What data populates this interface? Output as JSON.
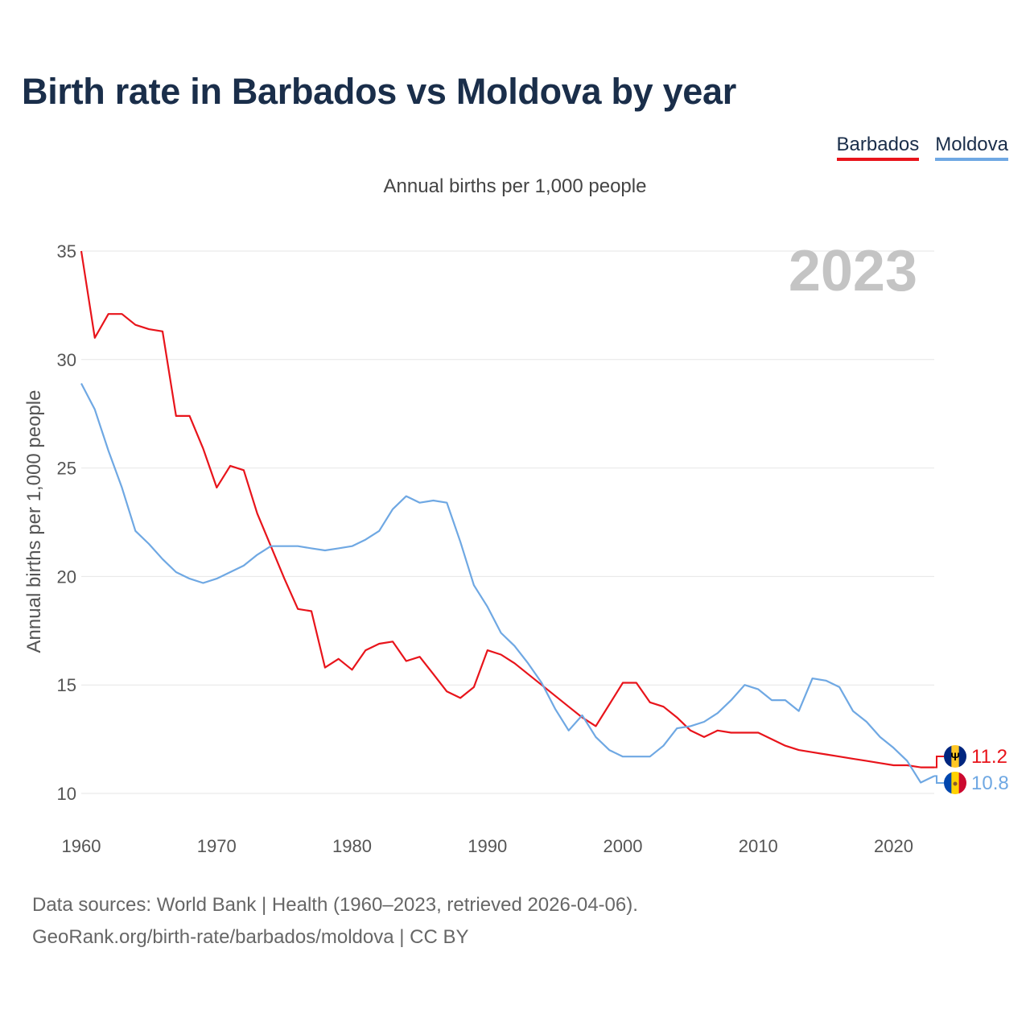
{
  "title": "Birth rate in Barbados vs Moldova by year",
  "subtitle": "Annual births per 1,000 people",
  "colors": {
    "barbados": "#e8141b",
    "moldova": "#6fa8e3",
    "grid": "#e6e6e6",
    "axisText": "#555555",
    "yearStamp": "#c4c4c4"
  },
  "legend": [
    {
      "label": "Barbados",
      "color": "#e8141b"
    },
    {
      "label": "Moldova",
      "color": "#6fa8e3"
    }
  ],
  "footer": {
    "line1": "Data sources: World Bank | Health (1960–2023, retrieved 2026-04-06).",
    "line2": "GeoRank.org/birth-rate/barbados/moldova | CC BY"
  },
  "chart_data": {
    "type": "line",
    "title": "Birth rate in Barbados vs Moldova by year",
    "ylabel": "Annual births per 1,000 people",
    "xlabel": "",
    "year_stamp": "2023",
    "xlim": [
      1960,
      2023
    ],
    "ylim": [
      10,
      35
    ],
    "xticks": [
      1960,
      1970,
      1980,
      1990,
      2000,
      2010,
      2020
    ],
    "yticks": [
      10,
      15,
      20,
      25,
      30,
      35
    ],
    "x": [
      1960,
      1961,
      1962,
      1963,
      1964,
      1965,
      1966,
      1967,
      1968,
      1969,
      1970,
      1971,
      1972,
      1973,
      1974,
      1975,
      1976,
      1977,
      1978,
      1979,
      1980,
      1981,
      1982,
      1983,
      1984,
      1985,
      1986,
      1987,
      1988,
      1989,
      1990,
      1991,
      1992,
      1993,
      1994,
      1995,
      1996,
      1997,
      1998,
      1999,
      2000,
      2001,
      2002,
      2003,
      2004,
      2005,
      2006,
      2007,
      2008,
      2009,
      2010,
      2011,
      2012,
      2013,
      2014,
      2015,
      2016,
      2017,
      2018,
      2019,
      2020,
      2021,
      2022,
      2023
    ],
    "series": [
      {
        "name": "Barbados",
        "end_label": "11.2",
        "values": [
          35.0,
          31.0,
          32.1,
          32.1,
          31.6,
          31.4,
          31.3,
          27.4,
          27.4,
          25.9,
          24.1,
          25.1,
          24.9,
          22.9,
          21.4,
          19.9,
          18.5,
          18.4,
          15.8,
          16.2,
          15.7,
          16.6,
          16.9,
          17.0,
          16.1,
          16.3,
          15.5,
          14.7,
          14.4,
          14.9,
          16.6,
          16.4,
          16.0,
          15.5,
          15.0,
          14.5,
          14.0,
          13.5,
          13.1,
          14.1,
          15.1,
          15.1,
          14.2,
          14.0,
          13.5,
          12.9,
          12.6,
          12.9,
          12.8,
          12.8,
          12.8,
          12.5,
          12.2,
          12.0,
          11.9,
          11.8,
          11.7,
          11.6,
          11.5,
          11.4,
          11.3,
          11.3,
          11.2,
          11.2
        ]
      },
      {
        "name": "Moldova",
        "end_label": "10.8",
        "values": [
          28.9,
          27.7,
          25.8,
          24.1,
          22.1,
          21.5,
          20.8,
          20.2,
          19.9,
          19.7,
          19.9,
          20.2,
          20.5,
          21.0,
          21.4,
          21.4,
          21.4,
          21.3,
          21.2,
          21.3,
          21.4,
          21.7,
          22.1,
          23.1,
          23.7,
          23.4,
          23.5,
          23.4,
          21.6,
          19.6,
          18.6,
          17.4,
          16.8,
          16.0,
          15.1,
          13.9,
          12.9,
          13.6,
          12.6,
          12.0,
          11.7,
          11.7,
          11.7,
          12.2,
          13.0,
          13.1,
          13.3,
          13.7,
          14.3,
          15.0,
          14.8,
          14.3,
          14.3,
          13.8,
          15.3,
          15.2,
          14.9,
          13.8,
          13.3,
          12.6,
          12.1,
          11.5,
          10.5,
          10.8
        ]
      }
    ]
  }
}
